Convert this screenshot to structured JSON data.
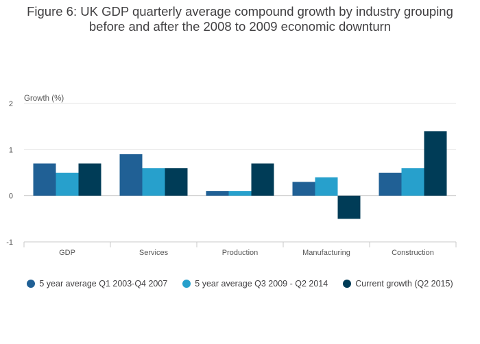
{
  "title": {
    "line1": "Figure 6: UK GDP quarterly average compound growth by industry grouping",
    "line2": "before and after the 2008 to 2009 economic downturn"
  },
  "chart_data": {
    "type": "bar",
    "ylabel": "Growth (%)",
    "ylim": [
      -1,
      2
    ],
    "yticks": [
      -1,
      0,
      1,
      2
    ],
    "grid": true,
    "legend_position": "bottom",
    "categories": [
      "GDP",
      "Services",
      "Production",
      "Manufacturing",
      "Construction"
    ],
    "series": [
      {
        "name": "5 year average Q1 2003-Q4 2007",
        "color": "#206095",
        "values": [
          0.7,
          0.9,
          0.1,
          0.3,
          0.5
        ]
      },
      {
        "name": "5 year average Q3 2009 - Q2 2014",
        "color": "#27a0cc",
        "values": [
          0.5,
          0.6,
          0.1,
          0.4,
          0.6
        ]
      },
      {
        "name": "Current growth (Q2 2015)",
        "color": "#003c57",
        "values": [
          0.7,
          0.6,
          0.7,
          -0.5,
          1.4
        ]
      }
    ]
  }
}
